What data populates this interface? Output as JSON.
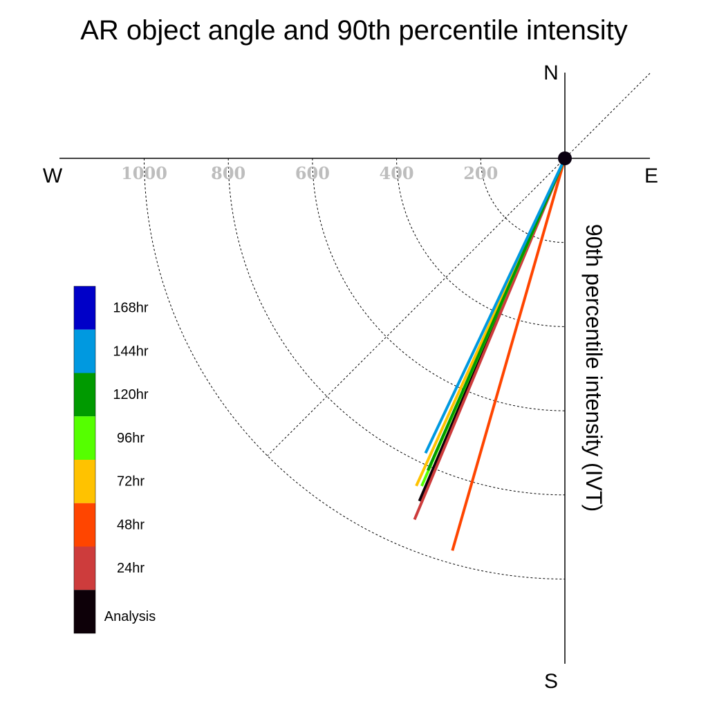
{
  "chart_data": {
    "type": "polar-vector",
    "title": "AR object angle and 90th percentile intensity",
    "ylabel": "90th percentile intensity (IVT)",
    "compass": {
      "north": "N",
      "east": "E",
      "south": "S",
      "west": "W"
    },
    "radial_ticks": [
      "1000",
      "800",
      "600",
      "400",
      "200"
    ],
    "radial_tick_values": [
      1000,
      800,
      600,
      400,
      200
    ],
    "rlim": [
      0,
      1200
    ],
    "grid": true,
    "legend_position": "left",
    "series": [
      {
        "name": "Analysis",
        "color": "#0d0008",
        "angle_deg": 203.0,
        "intensity": 885
      },
      {
        "name": "24hr",
        "color": "#cd3c3c",
        "angle_deg": 202.6,
        "intensity": 930
      },
      {
        "name": "48hr",
        "color": "#ff4500",
        "angle_deg": 196.0,
        "intensity": 970
      },
      {
        "name": "72hr",
        "color": "#ffc200",
        "angle_deg": 204.4,
        "intensity": 855
      },
      {
        "name": "96hr",
        "color": "#55ff00",
        "angle_deg": 203.6,
        "intensity": 850
      },
      {
        "name": "120hr",
        "color": "#009a00",
        "angle_deg": 203.7,
        "intensity": 810
      },
      {
        "name": "144hr",
        "color": "#0099e0",
        "angle_deg": 205.3,
        "intensity": 775
      },
      {
        "name": "168hr",
        "color": "#0000c8",
        "angle_deg": null,
        "intensity": null
      }
    ],
    "legend_order": [
      "168hr",
      "144hr",
      "120hr",
      "96hr",
      "72hr",
      "48hr",
      "24hr",
      "Analysis"
    ]
  }
}
